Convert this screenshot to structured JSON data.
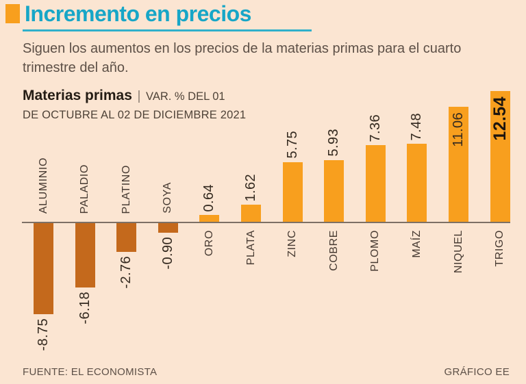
{
  "page": {
    "title": "Incremento en precios",
    "subtitle": "Siguen los aumentos en los precios de la materias primas para el cuarto trimestre del año.",
    "footer_left": "FUENTE: EL ECONOMISTA",
    "footer_right": "GRÁFICO EE"
  },
  "note": {
    "strong": "Materias primas",
    "separator": "|",
    "line1_rest": "VAR. % DEL 01",
    "line2": "DE OCTUBRE AL 02 DE DICIEMBRE 2021"
  },
  "colors": {
    "background": "#FBE5D2",
    "accent_cyan": "#17A6C7",
    "accent_orange": "#F89F1E",
    "bar_positive": "#F89F1E",
    "bar_negative": "#C4691C",
    "zero_line": "#7D7065"
  },
  "chart_data": {
    "type": "bar",
    "title": "Materias primas",
    "subtitle": "VAR. % DEL 01 DE OCTUBRE AL 02 DE DICIEMBRE 2021",
    "orientation": "vertical",
    "categories": [
      "ALUMINIO",
      "PALADIO",
      "PLATINO",
      "SOYA",
      "ORO",
      "PLATA",
      "ZINC",
      "COBRE",
      "PLOMO",
      "MAÍZ",
      "NIQUEL",
      "TRIGO"
    ],
    "values": [
      -8.75,
      -6.18,
      -2.76,
      -0.9,
      0.64,
      1.62,
      5.75,
      5.93,
      7.36,
      7.48,
      11.06,
      12.54
    ],
    "value_labels": [
      "-8.75",
      "-6.18",
      "-2.76",
      "-0.90",
      "0.64",
      "1.62",
      "5.75",
      "5.93",
      "7.36",
      "7.48",
      "11.06",
      "12.54"
    ],
    "emphasized_category": "TRIGO",
    "ylim": [
      -9,
      13
    ],
    "grid": false,
    "legend": false,
    "unit": "VAR. %"
  }
}
